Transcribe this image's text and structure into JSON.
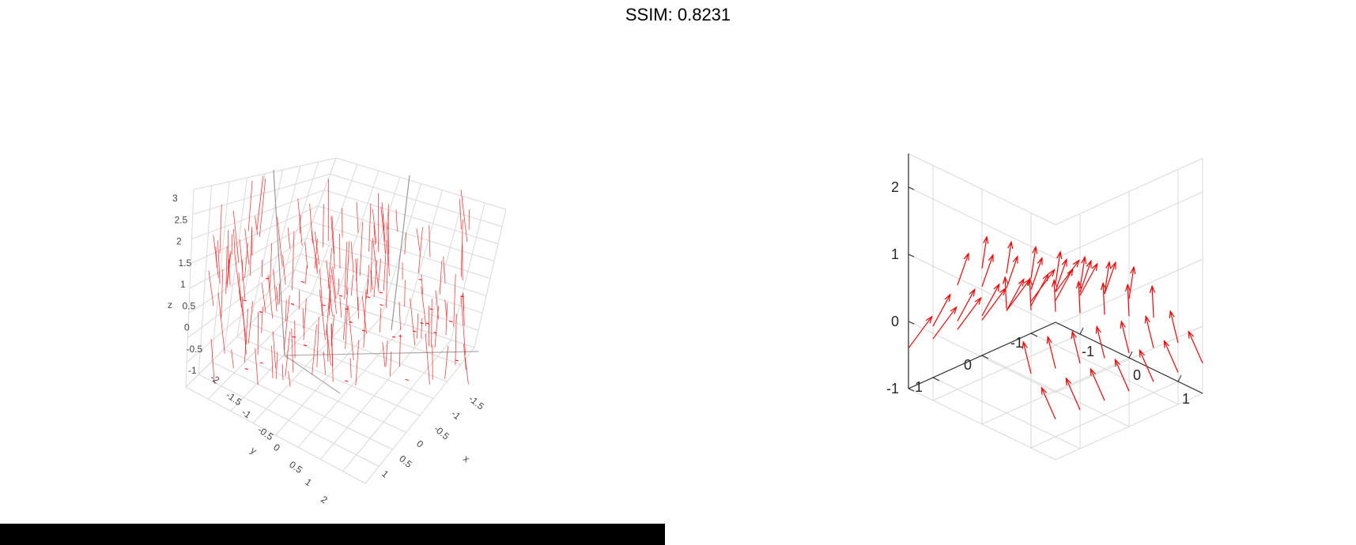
{
  "header": {
    "title": "SSIM: 0.8231"
  },
  "colors": {
    "arrow": "#ff0000",
    "grid": "#d9d9d9",
    "axis": "#262626",
    "bar": "#000000"
  },
  "chart_data": [
    {
      "type": "quiver3d",
      "render_style": "plotly-like",
      "xlabel": "x",
      "ylabel": "y",
      "zlabel": "z",
      "xlim": [
        -1.5,
        1
      ],
      "ylim": [
        -2,
        2
      ],
      "zlim": [
        -1,
        3
      ],
      "x_ticks": [
        "-1.5",
        "-1",
        "-0.5",
        "0",
        "0.5",
        "1"
      ],
      "y_ticks": [
        "-2",
        "-1.5",
        "-1",
        "-0.5",
        "0",
        "0.5",
        "1",
        "2"
      ],
      "z_ticks": [
        "-1",
        "-0.5",
        "0",
        "0.5",
        "1",
        "1.5",
        "2",
        "2.5",
        "3"
      ],
      "grid": true,
      "arrow_color": "#ff0000"
    },
    {
      "type": "quiver3d",
      "render_style": "matlab-like",
      "x_ticks": [
        "-1",
        "0",
        "1"
      ],
      "y_ticks": [
        "-1",
        "0",
        "1"
      ],
      "z_ticks": [
        "-1",
        "0",
        "1",
        "2"
      ],
      "xlim": [
        -1.5,
        1.5
      ],
      "ylim": [
        -1.5,
        1.5
      ],
      "zlim": [
        -1,
        2.5
      ],
      "grid": true,
      "arrow_color": "#ff0000"
    }
  ]
}
